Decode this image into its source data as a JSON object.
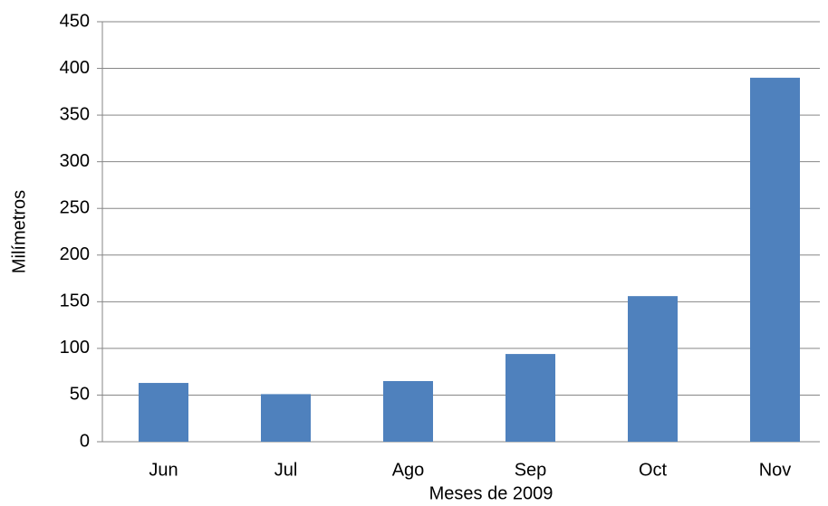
{
  "chart_data": {
    "type": "bar",
    "x_label": "Meses de  2009",
    "y_label": "Milímetros",
    "categories": [
      "Jun",
      "Jul",
      "Ago",
      "Sep",
      "Oct",
      "Nov"
    ],
    "values": [
      63,
      51,
      65,
      94,
      156,
      390
    ],
    "color": "#4f81bd",
    "ylim": [
      0,
      450
    ],
    "yticks": [
      0,
      50,
      100,
      150,
      200,
      250,
      300,
      350,
      400,
      450
    ],
    "grid": true
  }
}
